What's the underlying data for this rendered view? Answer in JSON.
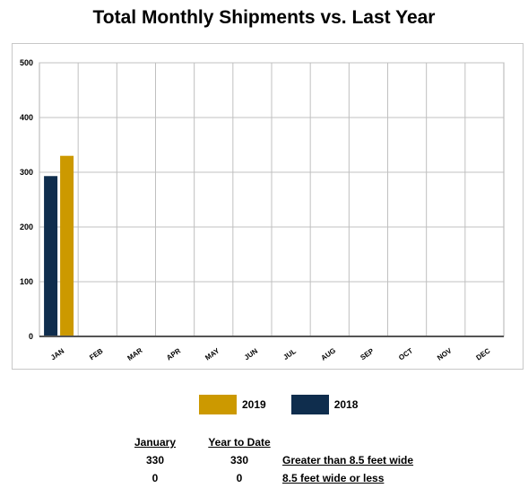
{
  "chart_data": {
    "type": "bar",
    "title": "Total Monthly Shipments vs. Last Year",
    "xlabel": "",
    "ylabel": "",
    "categories": [
      "JAN",
      "FEB",
      "MAR",
      "APR",
      "MAY",
      "JUN",
      "JUL",
      "AUG",
      "SEP",
      "OCT",
      "NOV",
      "DEC"
    ],
    "series": [
      {
        "name": "2018",
        "color": "#0f2d4d",
        "values": [
          293,
          null,
          null,
          null,
          null,
          null,
          null,
          null,
          null,
          null,
          null,
          null
        ]
      },
      {
        "name": "2019",
        "color": "#cc9900",
        "values": [
          330,
          null,
          null,
          null,
          null,
          null,
          null,
          null,
          null,
          null,
          null,
          null
        ]
      }
    ],
    "ylim": [
      0,
      500
    ],
    "yticks": [
      0,
      100,
      200,
      300,
      400,
      500
    ],
    "grid": true,
    "legend_placement": "bottom-center"
  },
  "legend": [
    {
      "label": "2019",
      "color": "#cc9900"
    },
    {
      "label": "2018",
      "color": "#0f2d4d"
    }
  ],
  "summary": {
    "headers": {
      "month": "January",
      "ytd": "Year to Date"
    },
    "rows": [
      {
        "month": "330",
        "ytd": "330",
        "label": "Greater than 8.5 feet wide"
      },
      {
        "month": "0",
        "ytd": "0",
        "label": "8.5 feet wide or less"
      }
    ]
  }
}
